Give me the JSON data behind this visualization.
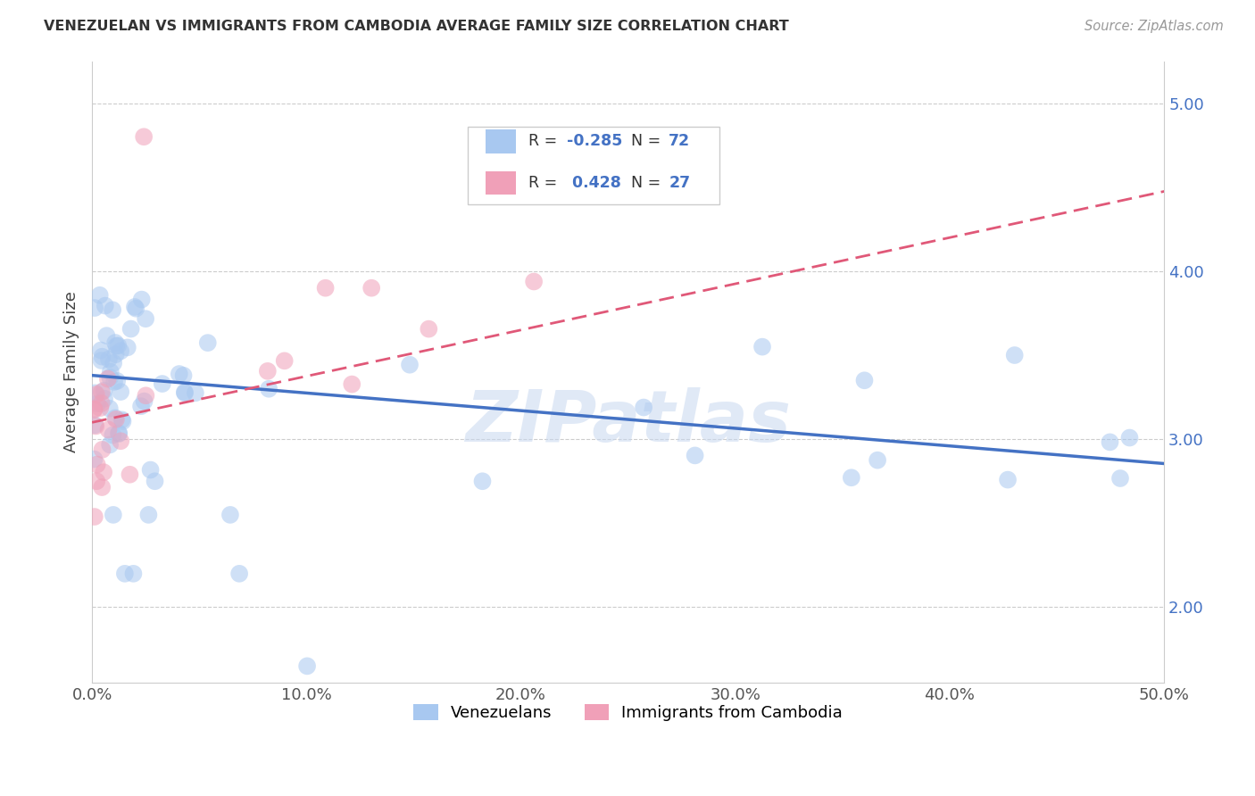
{
  "title": "VENEZUELAN VS IMMIGRANTS FROM CAMBODIA AVERAGE FAMILY SIZE CORRELATION CHART",
  "source": "Source: ZipAtlas.com",
  "ylabel": "Average Family Size",
  "legend_label1": "Venezuelans",
  "legend_label2": "Immigrants from Cambodia",
  "R1": "-0.285",
  "N1": "72",
  "R2": "0.428",
  "N2": "27",
  "xlim": [
    0.0,
    0.5
  ],
  "ylim": [
    1.55,
    5.25
  ],
  "yticks": [
    2.0,
    3.0,
    4.0,
    5.0
  ],
  "xticks": [
    0.0,
    0.1,
    0.2,
    0.3,
    0.4,
    0.5
  ],
  "color_blue": "#A8C8F0",
  "color_pink": "#F0A0B8",
  "line_blue": "#4472C4",
  "line_pink": "#E05878",
  "watermark": "ZIPatlas",
  "background": "#FFFFFF",
  "ven_intercept": 3.38,
  "ven_slope": -1.05,
  "cam_intercept": 3.05,
  "cam_slope": 3.5
}
